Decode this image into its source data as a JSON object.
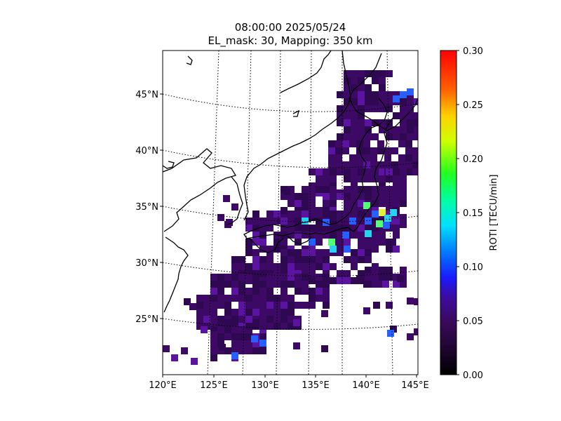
{
  "title": {
    "line1": "08:00:00 2025/05/24",
    "line2": "EL_mask: 30, Mapping: 350 km"
  },
  "map": {
    "lon_labels": [
      "120°E",
      "125°E",
      "130°E",
      "135°E",
      "140°E",
      "145°E"
    ],
    "lat_labels": [
      "45°N",
      "40°N",
      "35°N",
      "30°N",
      "25°N"
    ],
    "lon_range": [
      120,
      145
    ],
    "lat_range": [
      20,
      49
    ]
  },
  "colorbar": {
    "label": "ROTI [TECU/min]",
    "ticks": [
      "0.00",
      "0.05",
      "0.10",
      "0.15",
      "0.20",
      "0.25",
      "0.30"
    ],
    "range": [
      0.0,
      0.3
    ],
    "colors": [
      "#000000",
      "#3a0a5a",
      "#2a00c8",
      "#0044ff",
      "#00c8ff",
      "#00ffa0",
      "#30ff30",
      "#c8ff00",
      "#ffff00",
      "#ff9000",
      "#ff2000",
      "#ff0000"
    ]
  },
  "roti_colors": {
    "background_level": "#3c0a64",
    "background_dark": "#2e0850",
    "mid": "#5a14a0",
    "blue": "#2860ff",
    "cyan": "#28d2f0",
    "green": "#55ff75",
    "yellow": "#e6f03c"
  }
}
